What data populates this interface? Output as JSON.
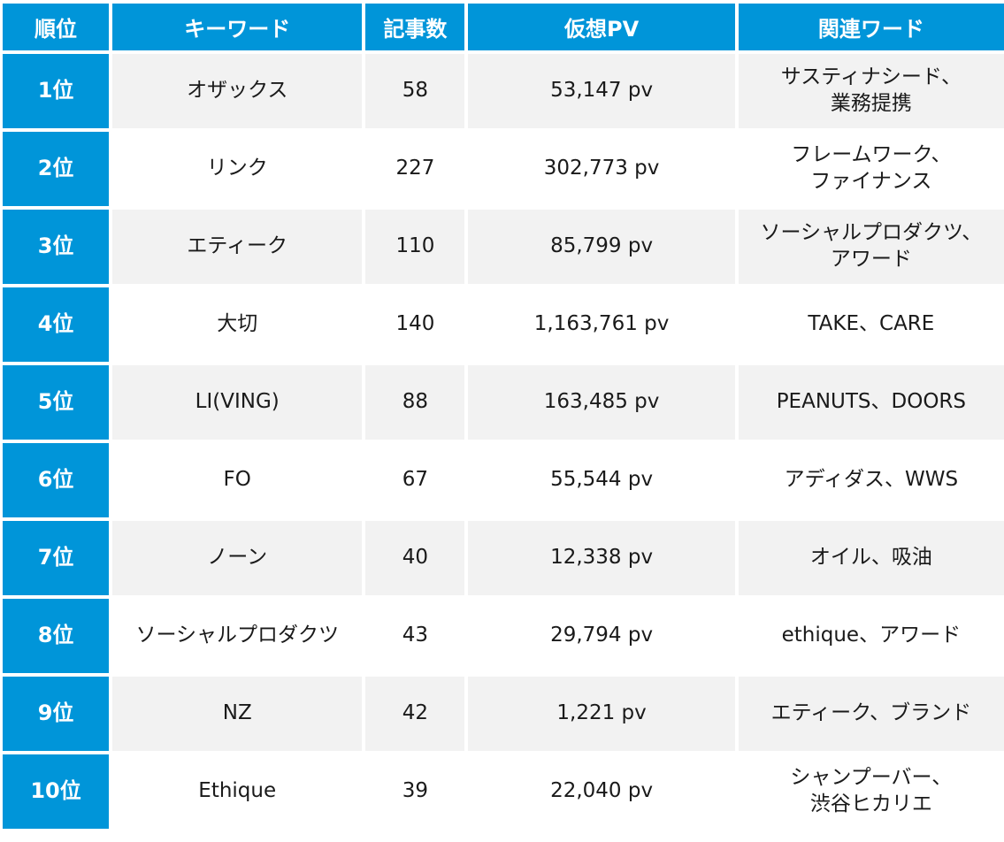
{
  "headers": {
    "rank": "順位",
    "keyword": "キーワード",
    "article_count": "記事数",
    "virtual_pv": "仮想PV",
    "related_words": "関連ワード"
  },
  "rows": [
    {
      "rank": "1位",
      "keyword": "オザックス",
      "article_count": "58",
      "virtual_pv": "53,147 pv",
      "related": [
        "サスティナシード、",
        "業務提携"
      ]
    },
    {
      "rank": "2位",
      "keyword": "リンク",
      "article_count": "227",
      "virtual_pv": "302,773 pv",
      "related": [
        "フレームワーク、",
        "ファイナンス"
      ]
    },
    {
      "rank": "3位",
      "keyword": "エティーク",
      "article_count": "110",
      "virtual_pv": "85,799 pv",
      "related": [
        "ソーシャルプロダクツ、",
        "アワード"
      ]
    },
    {
      "rank": "4位",
      "keyword": "大切",
      "article_count": "140",
      "virtual_pv": "1,163,761 pv",
      "related": [
        "TAKE、CARE"
      ]
    },
    {
      "rank": "5位",
      "keyword": "LI(VING)",
      "article_count": "88",
      "virtual_pv": "163,485 pv",
      "related": [
        "PEANUTS、DOORS"
      ]
    },
    {
      "rank": "6位",
      "keyword": "FO",
      "article_count": "67",
      "virtual_pv": "55,544 pv",
      "related": [
        "アディダス、WWS"
      ]
    },
    {
      "rank": "7位",
      "keyword": "ノーン",
      "article_count": "40",
      "virtual_pv": "12,338 pv",
      "related": [
        "オイル、吸油"
      ]
    },
    {
      "rank": "8位",
      "keyword": "ソーシャルプロダクツ",
      "article_count": "43",
      "virtual_pv": "29,794 pv",
      "related": [
        "ethique、アワード"
      ]
    },
    {
      "rank": "9位",
      "keyword": "NZ",
      "article_count": "42",
      "virtual_pv": "1,221 pv",
      "related": [
        "エティーク、ブランド"
      ]
    },
    {
      "rank": "10位",
      "keyword": "Ethique",
      "article_count": "39",
      "virtual_pv": "22,040 pv",
      "related": [
        "シャンプーバー、",
        "渋谷ヒカリエ"
      ]
    }
  ]
}
